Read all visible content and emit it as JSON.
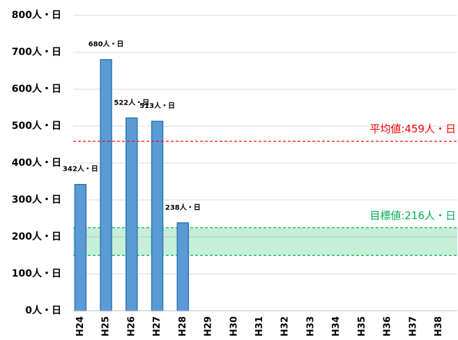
{
  "chart_data": {
    "type": "bar",
    "categories": [
      "H24",
      "H25",
      "H26",
      "H27",
      "H28",
      "H29",
      "H30",
      "H31",
      "H32",
      "H33",
      "H34",
      "H35",
      "H36",
      "H37",
      "H38"
    ],
    "values": [
      342,
      680,
      522,
      513,
      238,
      null,
      null,
      null,
      null,
      null,
      null,
      null,
      null,
      null,
      null
    ],
    "value_labels": [
      "342人・日",
      "680人・日",
      "522人・日",
      "513人・日",
      "238人・日",
      null,
      null,
      null,
      null,
      null,
      null,
      null,
      null,
      null,
      null
    ],
    "color": "#5b9bd5",
    "ylim": [
      0,
      800
    ],
    "yticks": [
      {
        "value": 0,
        "label": "0人・日"
      },
      {
        "value": 100,
        "label": "100人・日"
      },
      {
        "value": 200,
        "label": "200人・日"
      },
      {
        "value": 300,
        "label": "300人・日"
      },
      {
        "value": 400,
        "label": "400人・日"
      },
      {
        "value": 500,
        "label": "500人・日"
      },
      {
        "value": 600,
        "label": "600人・日"
      },
      {
        "value": 700,
        "label": "700人・日"
      },
      {
        "value": 800,
        "label": "800人・日"
      }
    ],
    "grid": true,
    "reference_line": {
      "label": "平均値:459人・日",
      "value": 459,
      "color": "#ff0000"
    },
    "target": {
      "label": "目標値:216人・日",
      "band": [
        150,
        225
      ],
      "color": "#00b050"
    }
  }
}
